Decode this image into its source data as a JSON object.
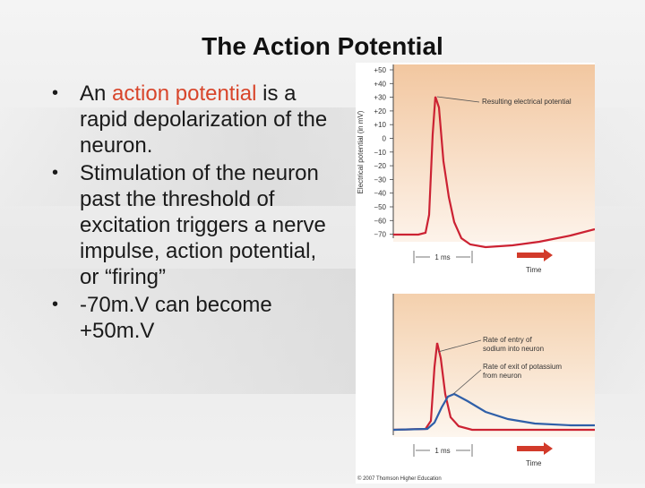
{
  "slide": {
    "title": "The Action Potential",
    "bullets": [
      {
        "before": "An ",
        "highlight": "action potential",
        "after": " is a rapid depolarization of the neuron."
      },
      {
        "before": "Stimulation of the neuron past the threshold of excitation triggers a nerve impulse, action potential, or “firing”",
        "highlight": "",
        "after": ""
      },
      {
        "before": "-70m.V can become +50m.V",
        "highlight": "",
        "after": ""
      }
    ],
    "highlight_color": "#d8452b"
  },
  "figure": {
    "top_panel": {
      "ylabel": "Electrical potential (in mV)",
      "yticks": [
        "+50",
        "+40",
        "+30",
        "+20",
        "+10",
        "0",
        "−10",
        "−20",
        "−30",
        "−40",
        "−50",
        "−60",
        "−70"
      ],
      "annotation": "Resulting electrical potential",
      "scale_label": "1 ms",
      "time_label": "Time"
    },
    "bottom_panel": {
      "annotation1_line1": "Rate of entry of",
      "annotation1_line2": "sodium into neuron",
      "annotation2_line1": "Rate of exit of potassium",
      "annotation2_line2": "from neuron",
      "scale_label": "1 ms",
      "time_label": "Time"
    },
    "credit": "© 2007 Thomson Higher Education",
    "colors": {
      "sodium_curve": "#cc2233",
      "potassium_curve": "#2f5fa8",
      "arrow": "#d23a2a",
      "panel_bg_top": "#f2c7a0",
      "panel_bg_bottom": "#fcf1e7"
    }
  }
}
